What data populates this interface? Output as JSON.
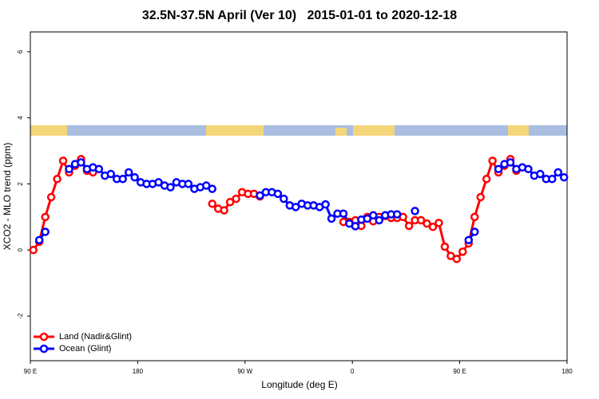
{
  "chart_data": {
    "type": "line",
    "title": "32.5N-37.5N April (Ver 10)   2015-01-01 to 2020-12-18",
    "x_label": "Longitude (deg E)",
    "y_label": "XCO2 - MLO trend (ppm)",
    "xlim": [
      90,
      540
    ],
    "ylim": [
      -3.35,
      6.6
    ],
    "xticks": [
      {
        "value": 90,
        "label": "90 E"
      },
      {
        "value": 180,
        "label": "180"
      },
      {
        "value": 270,
        "label": "90 W"
      },
      {
        "value": 360,
        "label": "0"
      },
      {
        "value": 450,
        "label": "90 E"
      },
      {
        "value": 540,
        "label": "180"
      }
    ],
    "yticks": [
      -2,
      0,
      2,
      4,
      6
    ],
    "legend": "bottomleft",
    "x": [
      92.5,
      97.5,
      102.5,
      107.5,
      112.5,
      117.5,
      122.5,
      127.5,
      132.5,
      137.5,
      142.5,
      147.5,
      152.5,
      157.5,
      162.5,
      167.5,
      172.5,
      177.5,
      182.5,
      187.5,
      192.5,
      197.5,
      202.5,
      207.5,
      212.5,
      217.5,
      222.5,
      227.5,
      232.5,
      237.5,
      242.5,
      247.5,
      252.5,
      257.5,
      262.5,
      267.5,
      272.5,
      277.5,
      282.5,
      287.5,
      292.5,
      297.5,
      302.5,
      307.5,
      312.5,
      317.5,
      322.5,
      327.5,
      332.5,
      337.5,
      342.5,
      347.5,
      352.5,
      357.5,
      362.5,
      367.5,
      372.5,
      377.5,
      382.5,
      387.5,
      392.5,
      397.5,
      402.5,
      407.5,
      412.5,
      417.5,
      422.5,
      427.5,
      432.5,
      437.5,
      442.5,
      447.5,
      452.5,
      457.5,
      462.5,
      467.5,
      472.5,
      477.5,
      482.5,
      487.5,
      492.5,
      497.5,
      502.5,
      507.5,
      512.5,
      517.5,
      522.5,
      527.5,
      532.5,
      537.5
    ],
    "series": [
      {
        "name": "Land (Nadir&Glint)",
        "color": "#ff0000",
        "values": [
          0,
          0.25,
          1.0,
          1.6,
          2.15,
          2.7,
          2.35,
          2.55,
          2.75,
          2.4,
          2.35,
          null,
          null,
          null,
          null,
          null,
          null,
          null,
          null,
          null,
          null,
          null,
          null,
          null,
          null,
          null,
          null,
          null,
          null,
          null,
          1.4,
          1.25,
          1.2,
          1.45,
          1.55,
          1.75,
          1.7,
          1.7,
          1.62,
          null,
          null,
          null,
          null,
          null,
          null,
          null,
          null,
          null,
          null,
          null,
          null,
          null,
          0.85,
          0.85,
          0.9,
          0.73,
          1.0,
          0.87,
          1.0,
          1.03,
          0.97,
          0.97,
          1.0,
          0.73,
          0.9,
          0.9,
          0.8,
          0.7,
          0.82,
          0.1,
          -0.18,
          -0.27,
          -0.05,
          0.2,
          1.0,
          1.6,
          2.15,
          2.7,
          2.35,
          2.55,
          2.75,
          2.4,
          null,
          null,
          null,
          null,
          null,
          null,
          null,
          null
        ]
      },
      {
        "name": "Ocean (Glint)",
        "color": "#0000ff",
        "values": [
          null,
          0.3,
          0.55,
          null,
          null,
          null,
          2.45,
          2.6,
          2.65,
          2.45,
          2.5,
          2.45,
          2.25,
          2.3,
          2.15,
          2.15,
          2.35,
          2.2,
          2.05,
          2.0,
          2.0,
          2.05,
          1.95,
          1.9,
          2.05,
          2.0,
          2.0,
          1.85,
          1.9,
          1.95,
          1.85,
          null,
          null,
          null,
          null,
          null,
          null,
          null,
          1.65,
          1.75,
          1.75,
          1.7,
          1.55,
          1.35,
          1.3,
          1.4,
          1.35,
          1.35,
          1.3,
          1.38,
          0.95,
          1.1,
          1.1,
          0.8,
          0.72,
          0.92,
          0.95,
          1.05,
          0.9,
          1.05,
          1.08,
          1.08,
          null,
          null,
          1.18,
          null,
          null,
          null,
          null,
          null,
          null,
          null,
          null,
          0.3,
          0.55,
          null,
          null,
          null,
          2.45,
          2.6,
          2.65,
          2.45,
          2.5,
          2.45,
          2.25,
          2.3,
          2.15,
          2.15,
          2.35,
          2.2
        ]
      }
    ]
  }
}
